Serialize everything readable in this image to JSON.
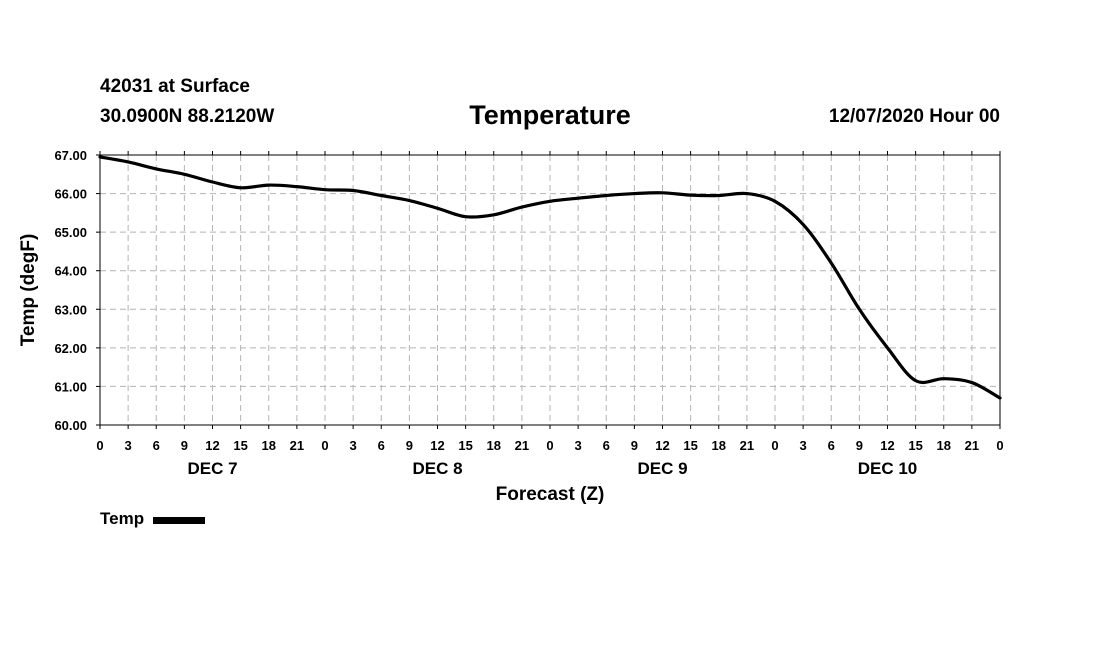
{
  "header": {
    "station": "42031 at Surface",
    "coords": "30.0900N 88.2120W",
    "title": "Temperature",
    "run": "12/07/2020 Hour 00"
  },
  "chart_data": {
    "type": "line",
    "title": "Temperature",
    "xlabel": "Forecast (Z)",
    "ylabel": "Temp (degF)",
    "ylim": [
      60.0,
      67.0
    ],
    "yticks": [
      "60.00",
      "61.00",
      "62.00",
      "63.00",
      "64.00",
      "65.00",
      "66.00",
      "67.00"
    ],
    "x_ticks": [
      "0",
      "3",
      "6",
      "9",
      "12",
      "15",
      "18",
      "21",
      "0",
      "3",
      "6",
      "9",
      "12",
      "15",
      "18",
      "21",
      "0",
      "3",
      "6",
      "9",
      "12",
      "15",
      "18",
      "21",
      "0",
      "3",
      "6",
      "9",
      "12",
      "15",
      "18",
      "21",
      "0"
    ],
    "days": [
      "DEC 7",
      "DEC 8",
      "DEC 9",
      "DEC 10"
    ],
    "grid": true,
    "legend_position": "bottom-left",
    "series": [
      {
        "name": "Temp",
        "color": "#000000",
        "x_hours": [
          0,
          3,
          6,
          9,
          12,
          15,
          18,
          21,
          24,
          27,
          30,
          33,
          36,
          39,
          42,
          45,
          48,
          51,
          54,
          57,
          60,
          63,
          66,
          69,
          72,
          75,
          78,
          81,
          84,
          87,
          90,
          93,
          96
        ],
        "values": [
          66.95,
          66.82,
          66.64,
          66.5,
          66.3,
          66.15,
          66.22,
          66.18,
          66.1,
          66.08,
          65.95,
          65.82,
          65.62,
          65.4,
          65.45,
          65.65,
          65.8,
          65.88,
          65.95,
          66.0,
          66.02,
          65.96,
          65.95,
          66.0,
          65.8,
          65.2,
          64.2,
          63.0,
          62.0,
          61.15,
          61.2,
          61.1,
          60.7
        ]
      }
    ]
  },
  "legend": {
    "label": "Temp"
  }
}
